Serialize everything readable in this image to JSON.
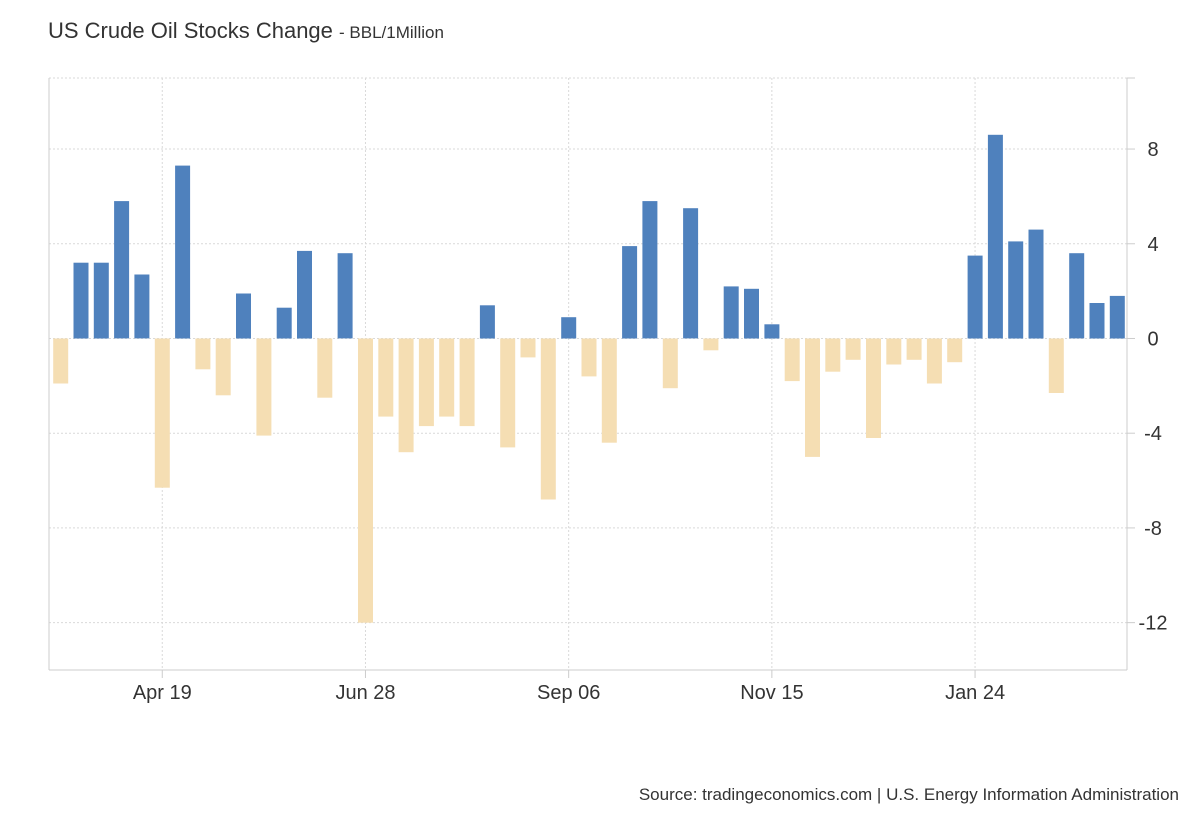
{
  "header": {
    "title": "US Crude Oil Stocks Change",
    "unit": "- BBL/1Million"
  },
  "footer": {
    "source": "Source: tradingeconomics.com | U.S. Energy Information Administration"
  },
  "colors": {
    "positive": "#4f81bd",
    "negative": "#f5deb3",
    "grid": "#d9d9d9",
    "axis": "#cccccc",
    "text": "#333333"
  },
  "chart_data": {
    "type": "bar",
    "title": "US Crude Oil Stocks Change",
    "unit": "BBL/1Million",
    "xlabel": "",
    "ylabel": "",
    "ylim": [
      -14,
      11
    ],
    "y_ticks": [
      8,
      4,
      0,
      -4,
      -8,
      -12
    ],
    "y_tick_labels": [
      "8",
      "4",
      "0",
      "-4",
      "-8",
      "-12"
    ],
    "x_tick_labels": [
      "Apr 19",
      "Jun 28",
      "Sep 06",
      "Nov 15",
      "Jan 24"
    ],
    "x_tick_positions": [
      5.5,
      15.5,
      25.5,
      35.5,
      45.5
    ],
    "grid": true,
    "legend": "none",
    "values": [
      -1.9,
      3.2,
      3.2,
      5.8,
      2.7,
      -6.3,
      7.3,
      -1.3,
      -2.4,
      1.9,
      -4.1,
      1.3,
      3.7,
      -2.5,
      3.6,
      -12.0,
      -3.3,
      -4.8,
      -3.7,
      -3.3,
      -3.7,
      1.4,
      -4.6,
      -0.8,
      -6.8,
      0.9,
      -1.6,
      -4.4,
      3.9,
      5.8,
      -2.1,
      5.5,
      -0.5,
      2.2,
      2.1,
      0.6,
      -1.8,
      -5.0,
      -1.4,
      -0.9,
      -4.2,
      -1.1,
      -0.9,
      -1.9,
      -1.0,
      3.5,
      8.6,
      4.1,
      4.6,
      -2.3,
      3.6,
      1.5,
      1.8
    ]
  }
}
